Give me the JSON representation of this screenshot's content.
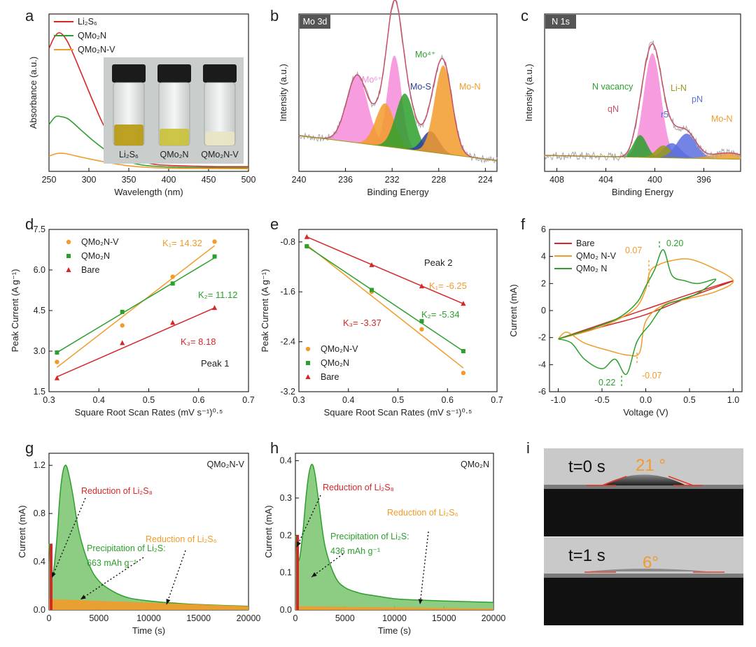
{
  "colors": {
    "red": "#d62728",
    "green": "#2ca02c",
    "orange": "#f29b2a",
    "gray": "#a8a8a8",
    "pink": "#f48bd9",
    "blue": "#5b6ee1",
    "navy": "#2c3e9c",
    "olive": "#9a9a16",
    "envelope": "#c8506a"
  },
  "panels": {
    "a": {
      "letter": "a"
    },
    "b": {
      "letter": "b",
      "tag": "Mo 3d"
    },
    "c": {
      "letter": "c",
      "tag": "N 1s"
    },
    "d": {
      "letter": "d"
    },
    "e": {
      "letter": "e"
    },
    "f": {
      "letter": "f"
    },
    "g": {
      "letter": "g"
    },
    "h": {
      "letter": "h"
    },
    "i": {
      "letter": "i"
    }
  },
  "chart_data": [
    {
      "id": "a",
      "type": "line",
      "xlabel": "Wavelength (nm)",
      "ylabel": "Absorbance (a.u.)",
      "xlim": [
        250,
        500
      ],
      "xticks": [
        250,
        300,
        350,
        400,
        450,
        500
      ],
      "legend": [
        {
          "label": "Li₂S₆",
          "color": "red"
        },
        {
          "label": "QMo₂N",
          "color": "green"
        },
        {
          "label": "QMo₂N-V",
          "color": "orange"
        }
      ],
      "series": [
        {
          "name": "Li₂S₆",
          "color": "red",
          "x": [
            250,
            256,
            262,
            268,
            276,
            290,
            305,
            320,
            340,
            360,
            380,
            400,
            430,
            460,
            500
          ],
          "y": [
            0.46,
            0.5,
            0.52,
            0.51,
            0.47,
            0.37,
            0.26,
            0.16,
            0.08,
            0.04,
            0.02,
            0.015,
            0.012,
            0.01,
            0.01
          ]
        },
        {
          "name": "QMo₂N",
          "color": "green",
          "x": [
            250,
            258,
            266,
            275,
            290,
            305,
            320,
            340,
            360,
            380,
            410,
            450,
            500
          ],
          "y": [
            0.17,
            0.2,
            0.2,
            0.19,
            0.15,
            0.11,
            0.075,
            0.04,
            0.02,
            0.012,
            0.008,
            0.006,
            0.005
          ]
        },
        {
          "name": "QMo₂N-V",
          "color": "orange",
          "x": [
            250,
            260,
            270,
            285,
            300,
            320,
            345,
            370,
            400,
            450,
            500
          ],
          "y": [
            0.05,
            0.06,
            0.06,
            0.05,
            0.04,
            0.028,
            0.015,
            0.008,
            0.004,
            0.003,
            0.002
          ]
        }
      ],
      "photo_labels": [
        "Li₂S₆",
        "QMo₂N",
        "QMo₂N-V"
      ]
    },
    {
      "id": "b",
      "type": "area",
      "xlabel": "Binding Energy",
      "ylabel": "Intensity (a.u.)",
      "xlim": [
        240,
        223
      ],
      "xticks": [
        240,
        236,
        232,
        228,
        224
      ],
      "peaks": [
        {
          "name": "Mo⁶⁺ 3d5/2",
          "center": 235.0,
          "height": 0.55,
          "width": 0.9,
          "color": "pink"
        },
        {
          "name": "Mo⁶⁺ 3d3/2",
          "center": 231.8,
          "height": 0.75,
          "width": 0.6,
          "color": "pink"
        },
        {
          "name": "Mo⁴⁺ 3d3/2",
          "center": 232.6,
          "height": 0.35,
          "width": 0.8,
          "color": "orange"
        },
        {
          "name": "Mo⁴⁺ 3d5/2",
          "center": 230.9,
          "height": 0.45,
          "width": 0.8,
          "color": "green"
        },
        {
          "name": "Mo-S",
          "center": 228.7,
          "height": 0.17,
          "width": 0.7,
          "color": "navy"
        },
        {
          "name": "Mo-N",
          "center": 227.6,
          "height": 0.72,
          "width": 0.75,
          "color": "orange"
        }
      ],
      "annotations": [
        {
          "text": "Mo⁶⁺",
          "color": "pink"
        },
        {
          "text": "Mo⁴⁺",
          "color": "green"
        },
        {
          "text": "Mo-S",
          "color": "navy"
        },
        {
          "text": "Mo-N",
          "color": "orange"
        }
      ]
    },
    {
      "id": "c",
      "type": "area",
      "xlabel": "Binding Energy",
      "ylabel": "Intensity (a.u.)",
      "xlim": [
        409,
        393
      ],
      "xticks": [
        408,
        404,
        400,
        396
      ],
      "peaks": [
        {
          "name": "qN",
          "center": 400.2,
          "height": 0.85,
          "width": 0.7,
          "color": "pink"
        },
        {
          "name": "N vacancy",
          "center": 401.2,
          "height": 0.18,
          "width": 0.55,
          "color": "green"
        },
        {
          "name": "r5",
          "center": 398.6,
          "height": 0.12,
          "width": 0.7,
          "color": "blue"
        },
        {
          "name": "Li-N",
          "center": 399.3,
          "height": 0.1,
          "width": 0.6,
          "color": "olive"
        },
        {
          "name": "pN",
          "center": 397.4,
          "height": 0.2,
          "width": 0.8,
          "color": "blue"
        },
        {
          "name": "Mo-N",
          "center": 394.0,
          "height": 0.05,
          "width": 1.3,
          "color": "orange"
        }
      ],
      "annotations": [
        {
          "text": "N vacancy",
          "color": "green"
        },
        {
          "text": "qN",
          "color": "envelope"
        },
        {
          "text": "Li-N",
          "color": "olive"
        },
        {
          "text": "r5",
          "color": "blue"
        },
        {
          "text": "pN",
          "color": "blue"
        },
        {
          "text": "Mo-N",
          "color": "orange"
        }
      ]
    },
    {
      "id": "d",
      "type": "scatter",
      "xlabel": "Square Root Scan Rates (mV s⁻¹)⁰·⁵",
      "ylabel": "Peak Current (A g⁻¹)",
      "xlim": [
        0.3,
        0.7
      ],
      "ylim": [
        1.5,
        7.5
      ],
      "xticks": [
        0.3,
        0.4,
        0.5,
        0.6,
        0.7
      ],
      "yticks": [
        1.5,
        3.0,
        4.5,
        6.0,
        7.5
      ],
      "panel_label": "Peak 1",
      "series": [
        {
          "name": "QMo₂N-V",
          "color": "orange",
          "marker": "circle",
          "x": [
            0.316,
            0.447,
            0.548,
            0.632
          ],
          "y": [
            2.6,
            3.95,
            5.75,
            7.05
          ],
          "fit": [
            [
              0.316,
              2.4
            ],
            [
              0.632,
              6.9
            ]
          ],
          "label": "K₁= 14.32"
        },
        {
          "name": "QMo₂N",
          "color": "green",
          "marker": "square",
          "x": [
            0.316,
            0.447,
            0.548,
            0.632
          ],
          "y": [
            2.95,
            4.45,
            5.5,
            6.5
          ],
          "fit": [
            [
              0.316,
              2.95
            ],
            [
              0.632,
              6.45
            ]
          ],
          "label": "K₂= 11.12"
        },
        {
          "name": "Bare",
          "color": "red",
          "marker": "triangle",
          "x": [
            0.316,
            0.447,
            0.548,
            0.632
          ],
          "y": [
            2.0,
            3.3,
            4.05,
            4.6
          ],
          "fit": [
            [
              0.316,
              2.05
            ],
            [
              0.632,
              4.6
            ]
          ],
          "label": "K₃= 8.18"
        }
      ]
    },
    {
      "id": "e",
      "type": "scatter",
      "xlabel": "Square Root Scan Rates (mV s⁻¹)⁰·⁵",
      "ylabel": "Peak Current (A g⁻¹)",
      "xlim": [
        0.3,
        0.7
      ],
      "ylim": [
        -3.2,
        -0.6
      ],
      "xticks": [
        0.3,
        0.4,
        0.5,
        0.6,
        0.7
      ],
      "yticks": [
        -0.8,
        -1.6,
        -2.4,
        -3.2
      ],
      "panel_label": "Peak 2",
      "series": [
        {
          "name": "QMo₂N-V",
          "color": "orange",
          "marker": "circle",
          "x": [
            0.316,
            0.447,
            0.548,
            0.632
          ],
          "y": [
            -0.87,
            -1.6,
            -2.2,
            -2.9
          ],
          "fit": [
            [
              0.316,
              -0.85
            ],
            [
              0.632,
              -2.82
            ]
          ],
          "label": "K₁= -6.25"
        },
        {
          "name": "QMo₂N",
          "color": "green",
          "marker": "square",
          "x": [
            0.316,
            0.447,
            0.548,
            0.632
          ],
          "y": [
            -0.87,
            -1.57,
            -2.07,
            -2.55
          ],
          "fit": [
            [
              0.316,
              -0.87
            ],
            [
              0.632,
              -2.55
            ]
          ],
          "label": "K₂= -5.34"
        },
        {
          "name": "Bare",
          "color": "red",
          "marker": "triangle",
          "x": [
            0.316,
            0.447,
            0.548,
            0.632
          ],
          "y": [
            -0.72,
            -1.17,
            -1.51,
            -1.79
          ],
          "fit": [
            [
              0.316,
              -0.72
            ],
            [
              0.632,
              -1.79
            ]
          ],
          "label": "K₃= -3.37"
        }
      ]
    },
    {
      "id": "f",
      "type": "line",
      "xlabel": "Voltage (V)",
      "ylabel": "Current (mA)",
      "xlim": [
        -1.1,
        1.1
      ],
      "ylim": [
        -6,
        6
      ],
      "xticks": [
        -1.0,
        -0.5,
        0.0,
        0.5,
        1.0
      ],
      "yticks": [
        -6,
        -4,
        -2,
        0,
        2,
        4,
        6
      ],
      "legend": [
        {
          "label": "Bare",
          "color": "red"
        },
        {
          "label": "QMo₂ N-V",
          "color": "orange"
        },
        {
          "label": "QMo₂ N",
          "color": "green"
        }
      ],
      "series": [
        {
          "name": "Bare",
          "color": "red",
          "x": [
            -1.0,
            -0.5,
            0,
            0.5,
            1.0,
            0.5,
            0,
            -0.5,
            -1.0
          ],
          "y": [
            -2.1,
            -1.2,
            -0.3,
            1.0,
            2.2,
            1.2,
            0.1,
            -1.0,
            -2.1
          ]
        },
        {
          "name": "QMo₂ N-V",
          "color": "orange",
          "x": [
            -1.0,
            -0.6,
            -0.3,
            -0.1,
            0.0,
            0.05,
            0.15,
            0.3,
            0.5,
            0.75,
            1.0,
            0.8,
            0.5,
            0.2,
            0.0,
            -0.07,
            -0.2,
            -0.4,
            -0.7,
            -0.9,
            -1.0
          ],
          "y": [
            -2.1,
            -1.4,
            -0.6,
            0.3,
            1.6,
            2.9,
            3.4,
            3.7,
            3.8,
            3.2,
            2.2,
            1.4,
            0.9,
            0.4,
            -0.8,
            -3.1,
            -3.3,
            -3.0,
            -2.4,
            -1.6,
            -2.1
          ]
        },
        {
          "name": "QMo₂ N",
          "color": "green",
          "x": [
            -1.0,
            -0.6,
            -0.3,
            -0.1,
            0.0,
            0.1,
            0.2,
            0.3,
            0.45,
            0.6,
            0.8,
            0.6,
            0.4,
            0.2,
            0.05,
            -0.1,
            -0.22,
            -0.35,
            -0.5,
            -0.7,
            -0.85,
            -1.0
          ],
          "y": [
            -2.1,
            -1.3,
            -0.5,
            0.6,
            1.8,
            3.0,
            4.5,
            2.6,
            2.2,
            2.0,
            2.3,
            1.3,
            0.8,
            0.3,
            -1.0,
            -2.3,
            -4.7,
            -3.6,
            -4.3,
            -3.6,
            -2.4,
            -2.1
          ]
        }
      ],
      "annotations": [
        {
          "text": "0.07",
          "color": "orange"
        },
        {
          "text": "0.20",
          "color": "green"
        },
        {
          "text": "-0.07",
          "color": "orange"
        },
        {
          "text": "0.22",
          "color": "green"
        }
      ]
    },
    {
      "id": "g",
      "type": "area",
      "xlabel": "Time (s)",
      "ylabel": "Current (mA)",
      "xlim": [
        0,
        20000
      ],
      "ylim": [
        0,
        1.3
      ],
      "xticks": [
        0,
        5000,
        10000,
        15000,
        20000
      ],
      "yticks": [
        0.0,
        0.4,
        0.8,
        1.2
      ],
      "title": "QMo₂N-V",
      "curve": {
        "x": [
          0,
          150,
          300,
          500,
          800,
          1100,
          1400,
          1700,
          2000,
          2400,
          3000,
          4000,
          5000,
          6500,
          8000,
          10000,
          12000,
          15000,
          20000
        ],
        "y": [
          0.55,
          0.35,
          0.28,
          0.35,
          0.6,
          0.95,
          1.15,
          1.2,
          1.12,
          0.95,
          0.65,
          0.38,
          0.24,
          0.15,
          0.1,
          0.075,
          0.06,
          0.045,
          0.03
        ]
      },
      "baseline_level": 0.09,
      "annotations": [
        {
          "text": "Reduction of Li₂S₈",
          "color": "red"
        },
        {
          "text": "Reduction of Li₂S₆",
          "color": "orange"
        },
        {
          "text": "Precipitation of Li₂S:",
          "color": "green"
        },
        {
          "text": "663 mAh g⁻¹",
          "color": "green"
        }
      ]
    },
    {
      "id": "h",
      "type": "area",
      "xlabel": "Time (s)",
      "ylabel": "Current (mA)",
      "xlim": [
        0,
        20000
      ],
      "ylim": [
        0,
        0.42
      ],
      "xticks": [
        0,
        5000,
        10000,
        15000,
        20000
      ],
      "yticks": [
        0.0,
        0.1,
        0.2,
        0.3,
        0.4
      ],
      "title": "QMo₂N",
      "curve": {
        "x": [
          0,
          150,
          300,
          500,
          800,
          1100,
          1400,
          1700,
          2000,
          2400,
          3000,
          4000,
          5000,
          6500,
          8000,
          10000,
          12000,
          15000,
          20000
        ],
        "y": [
          0.2,
          0.14,
          0.13,
          0.15,
          0.22,
          0.31,
          0.37,
          0.39,
          0.36,
          0.28,
          0.17,
          0.09,
          0.06,
          0.045,
          0.038,
          0.03,
          0.027,
          0.024,
          0.02
        ]
      },
      "baseline_level": 0.01,
      "annotations": [
        {
          "text": "Reduction of Li₂S₈",
          "color": "red"
        },
        {
          "text": "Reduction of Li₂S₆",
          "color": "orange"
        },
        {
          "text": "Precipitation of Li₂S:",
          "color": "green"
        },
        {
          "text": "436 mAh g⁻¹",
          "color": "green"
        }
      ]
    },
    {
      "id": "i",
      "type": "image",
      "frames": [
        {
          "time": "t=0 s",
          "angle": "21 °"
        },
        {
          "time": "t=1 s",
          "angle": "6°"
        }
      ]
    }
  ]
}
